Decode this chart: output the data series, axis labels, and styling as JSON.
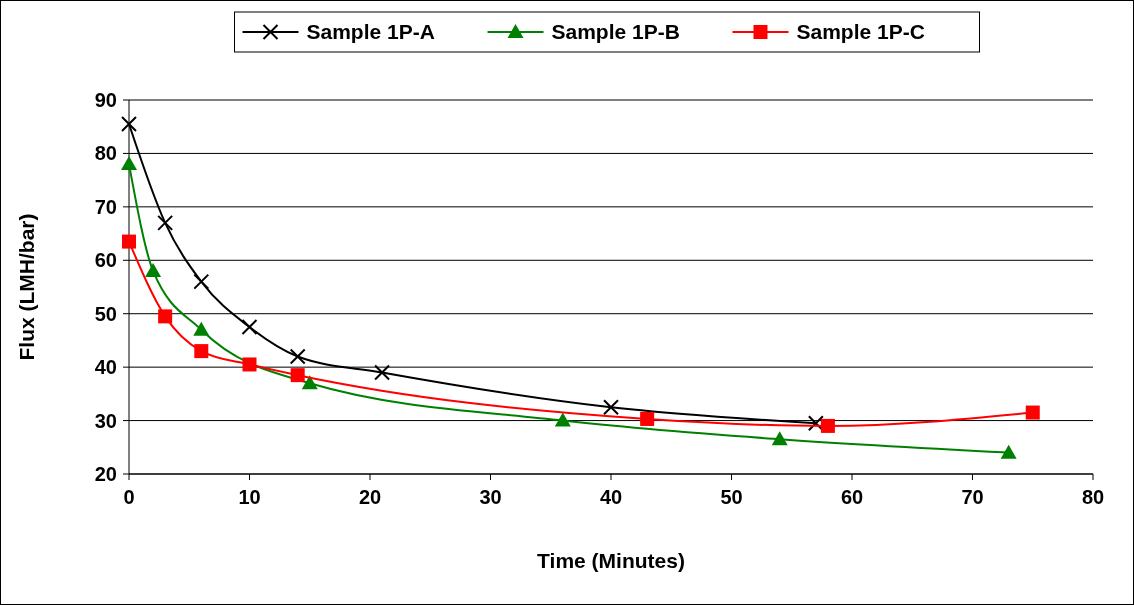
{
  "chart_data": {
    "type": "line",
    "xlabel": "Time (Minutes)",
    "ylabel": "Flux (LMH/bar)",
    "xlim": [
      0,
      80
    ],
    "xticks": [
      0,
      10,
      20,
      30,
      40,
      50,
      60,
      70,
      80
    ],
    "ylim": [
      20,
      90
    ],
    "yticks": [
      20,
      30,
      40,
      50,
      60,
      70,
      80,
      90
    ],
    "grid": "y",
    "legend": "top",
    "series": [
      {
        "name": "Sample 1P-A",
        "color": "#000000",
        "marker": "cross",
        "x": [
          0,
          3,
          6,
          10,
          14,
          21,
          40,
          57
        ],
        "values": [
          85.5,
          67,
          56,
          47.5,
          42,
          39,
          32.5,
          29.5
        ]
      },
      {
        "name": "Sample 1P-B",
        "color": "#008000",
        "marker": "triangle",
        "x": [
          0,
          2,
          6,
          10,
          15,
          36,
          54,
          73
        ],
        "values": [
          78,
          58,
          47,
          null,
          37,
          30,
          26.5,
          24
        ]
      },
      {
        "name": "Sample 1P-C",
        "color": "#ff0000",
        "marker": "square",
        "x": [
          0,
          3,
          6,
          10,
          14,
          43,
          58,
          75
        ],
        "values": [
          63.5,
          49.5,
          43,
          40.5,
          38.5,
          30.3,
          29,
          31.5
        ]
      }
    ]
  }
}
